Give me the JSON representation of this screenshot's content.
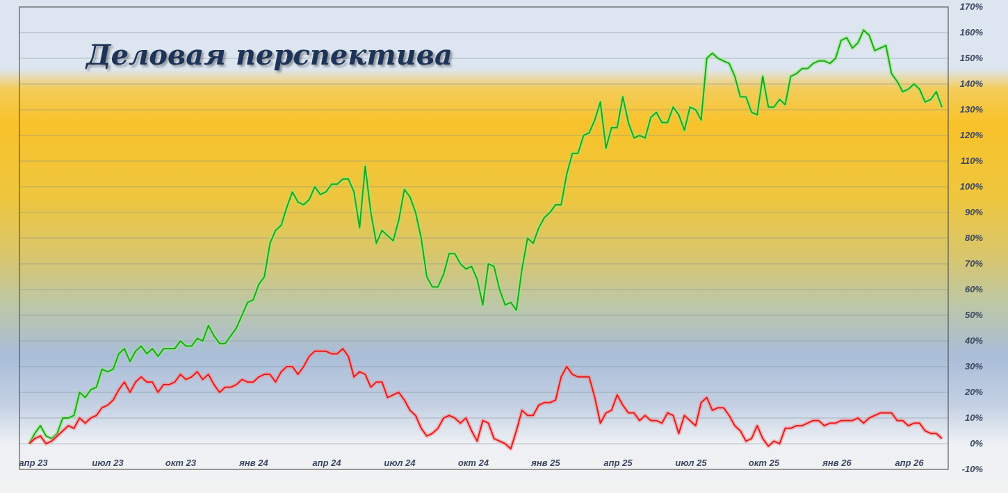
{
  "chart_data": {
    "type": "line",
    "title": "Деловая перспектива",
    "x_labels": [
      "апр 23",
      "июл 23",
      "окт 23",
      "янв 24",
      "апр 24",
      "июл 24",
      "окт 24",
      "янв 25",
      "апр 25",
      "июл 25",
      "окт 25",
      "янв 26",
      "апр 26"
    ],
    "ylim": [
      -10,
      170
    ],
    "y_ticks": [
      "-10%",
      "0%",
      "10%",
      "20%",
      "30%",
      "40%",
      "50%",
      "60%",
      "70%",
      "80%",
      "90%",
      "100%",
      "110%",
      "120%",
      "130%",
      "140%",
      "150%",
      "160%",
      "170%"
    ],
    "y_axis_position": "right",
    "grid": true,
    "series": [
      {
        "color": "#1fa51f",
        "values": [
          0,
          4,
          7,
          3,
          2,
          4,
          10,
          10,
          11,
          20,
          18,
          21,
          22,
          29,
          28,
          29,
          35,
          37,
          32,
          36,
          38,
          35,
          37,
          34,
          37,
          37,
          37,
          40,
          38,
          38,
          41,
          40,
          46,
          42,
          39,
          39,
          42,
          45,
          50,
          55,
          56,
          62,
          65,
          78,
          83,
          85,
          92,
          98,
          94,
          93,
          95,
          100,
          97,
          98,
          101,
          101,
          103,
          103,
          98,
          84,
          108,
          90,
          78,
          83,
          81,
          79,
          87,
          99,
          96,
          90,
          80,
          65,
          61,
          61,
          66,
          74,
          74,
          70,
          68,
          69,
          64,
          54,
          70,
          69,
          60,
          54,
          55,
          52,
          68,
          80,
          78,
          84,
          88,
          90,
          93,
          93,
          105,
          113,
          113,
          120,
          121,
          126,
          133,
          115,
          123,
          123,
          135,
          125,
          119,
          120,
          119,
          127,
          129,
          125,
          125,
          131,
          128,
          122,
          131,
          130,
          126,
          150,
          152,
          150,
          149,
          148,
          143,
          135,
          135,
          129,
          128,
          143,
          131,
          131,
          134,
          132,
          143,
          144,
          146,
          146,
          148,
          149,
          149,
          148,
          150,
          157,
          158,
          154,
          156,
          161,
          159,
          153,
          154,
          155,
          144,
          141,
          137,
          138,
          140,
          138,
          133,
          134,
          137,
          131
        ]
      },
      {
        "color": "#e41b1b",
        "values": [
          0,
          2,
          3,
          0,
          1,
          3,
          5,
          7,
          6,
          10,
          8,
          10,
          11,
          14,
          15,
          17,
          21,
          24,
          20,
          24,
          26,
          24,
          24,
          20,
          23,
          23,
          24,
          27,
          25,
          26,
          28,
          25,
          27,
          23,
          20,
          22,
          22,
          23,
          25,
          24,
          24,
          26,
          27,
          27,
          24,
          28,
          30,
          30,
          27,
          30,
          34,
          36,
          36,
          36,
          35,
          35,
          37,
          34,
          26,
          28,
          27,
          22,
          24,
          24,
          18,
          19,
          20,
          17,
          13,
          11,
          6,
          3,
          4,
          6,
          10,
          11,
          10,
          8,
          10,
          5,
          1,
          9,
          8,
          2,
          1,
          0,
          -2,
          5,
          13,
          11,
          11,
          15,
          16,
          16,
          17,
          26,
          30,
          27,
          26,
          26,
          26,
          18,
          8,
          12,
          13,
          19,
          15,
          12,
          12,
          9,
          11,
          9,
          9,
          8,
          12,
          11,
          4,
          11,
          9,
          7,
          16,
          18,
          13,
          14,
          14,
          11,
          7,
          5,
          1,
          2,
          7,
          2,
          -1,
          1,
          0,
          6,
          6,
          7,
          7,
          8,
          9,
          9,
          7,
          8,
          8,
          9,
          9,
          9,
          10,
          8,
          10,
          11,
          12,
          12,
          12,
          9,
          9,
          7,
          8,
          8,
          5,
          4,
          4,
          2
        ]
      }
    ]
  }
}
